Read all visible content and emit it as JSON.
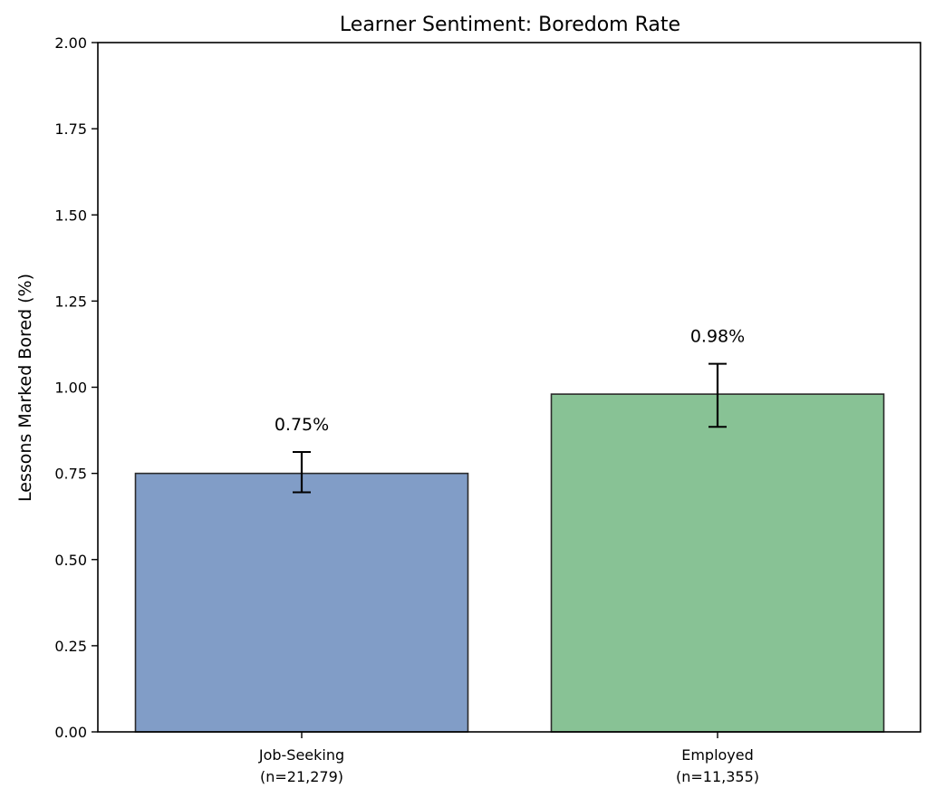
{
  "chart_data": {
    "type": "bar",
    "title": "Learner Sentiment: Boredom Rate",
    "xlabel": "",
    "ylabel": "Lessons Marked Bored (%)",
    "ylim": [
      0,
      2.0
    ],
    "yticks": [
      "0.00",
      "0.25",
      "0.50",
      "0.75",
      "1.00",
      "1.25",
      "1.50",
      "1.75",
      "2.00"
    ],
    "categories": [
      {
        "line1": "Job-Seeking",
        "line2": "(n=21,279)"
      },
      {
        "line1": "Employed",
        "line2": "(n=11,355)"
      }
    ],
    "values": [
      0.75,
      0.98
    ],
    "error_low": [
      0.695,
      0.885
    ],
    "error_high": [
      0.812,
      1.068
    ],
    "data_labels": [
      "0.75%",
      "0.98%"
    ],
    "colors": [
      "#819dc7",
      "#88c295"
    ],
    "edge_color": "#2b2b2b",
    "grid": false,
    "legend": "none"
  }
}
